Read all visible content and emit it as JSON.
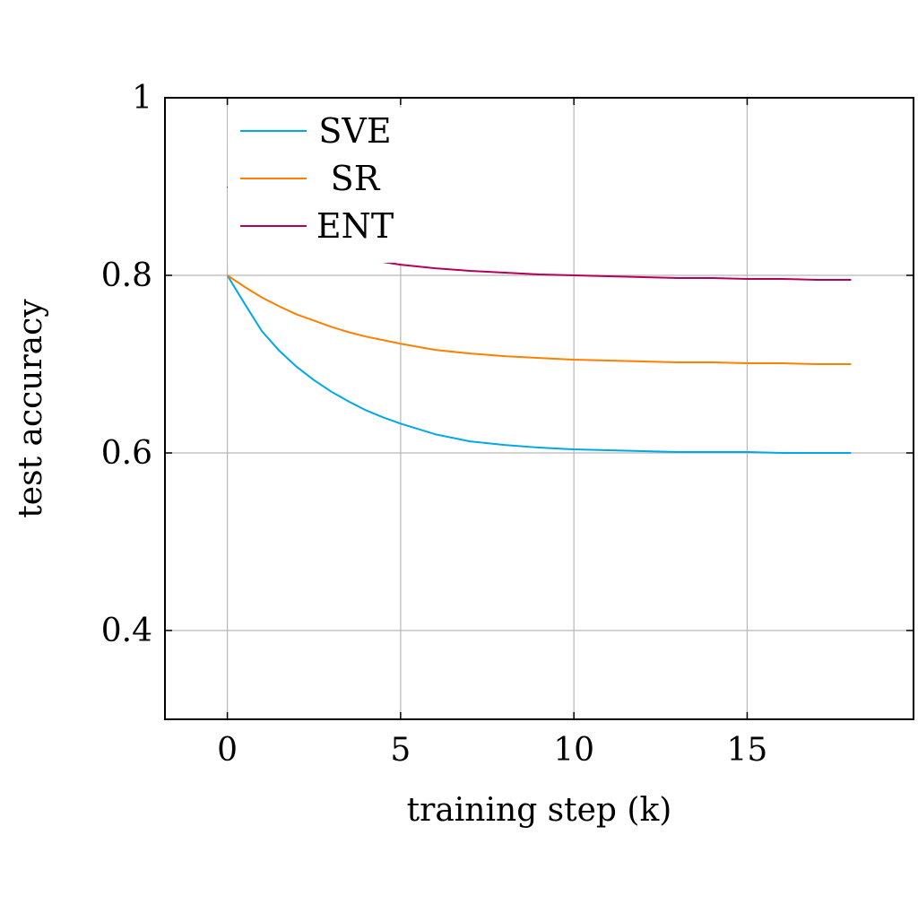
{
  "chart_data": {
    "type": "line",
    "title": "",
    "xlabel": "training step (k)",
    "ylabel": "test accuracy",
    "xlim": [
      -1.8,
      19.8
    ],
    "ylim": [
      0.3,
      1.0
    ],
    "xticks": [
      0,
      5,
      10,
      15
    ],
    "yticks": [
      0.4,
      0.6,
      0.8,
      1.0
    ],
    "xtick_labels": [
      "0",
      "5",
      "10",
      "15"
    ],
    "ytick_labels": [
      "0.4",
      "0.6",
      "0.8",
      "1"
    ],
    "grid": true,
    "legend_position": "top-left",
    "x": [
      0,
      0.5,
      1,
      1.5,
      2,
      2.5,
      3,
      3.5,
      4,
      4.5,
      5,
      6,
      7,
      8,
      9,
      10,
      11,
      12,
      13,
      14,
      15,
      16,
      17,
      18
    ],
    "series": [
      {
        "name": "SVE",
        "color": "#00a8e8",
        "values": [
          0.8,
          0.768,
          0.737,
          0.715,
          0.697,
          0.682,
          0.669,
          0.658,
          0.648,
          0.64,
          0.633,
          0.621,
          0.613,
          0.609,
          0.606,
          0.604,
          0.603,
          0.602,
          0.601,
          0.601,
          0.601,
          0.6,
          0.6,
          0.6
        ]
      },
      {
        "name": "SR",
        "color": "#ff8000",
        "values": [
          0.8,
          0.787,
          0.775,
          0.765,
          0.756,
          0.749,
          0.742,
          0.736,
          0.731,
          0.727,
          0.723,
          0.716,
          0.712,
          0.709,
          0.707,
          0.705,
          0.704,
          0.703,
          0.702,
          0.702,
          0.701,
          0.701,
          0.7,
          0.7
        ]
      },
      {
        "name": "ENT",
        "color": "#b5005b",
        "values": [
          0.9,
          0.878,
          0.862,
          0.85,
          0.841,
          0.834,
          0.828,
          0.822,
          0.818,
          0.815,
          0.812,
          0.808,
          0.805,
          0.803,
          0.801,
          0.8,
          0.799,
          0.798,
          0.797,
          0.797,
          0.796,
          0.796,
          0.795,
          0.795
        ]
      }
    ]
  }
}
